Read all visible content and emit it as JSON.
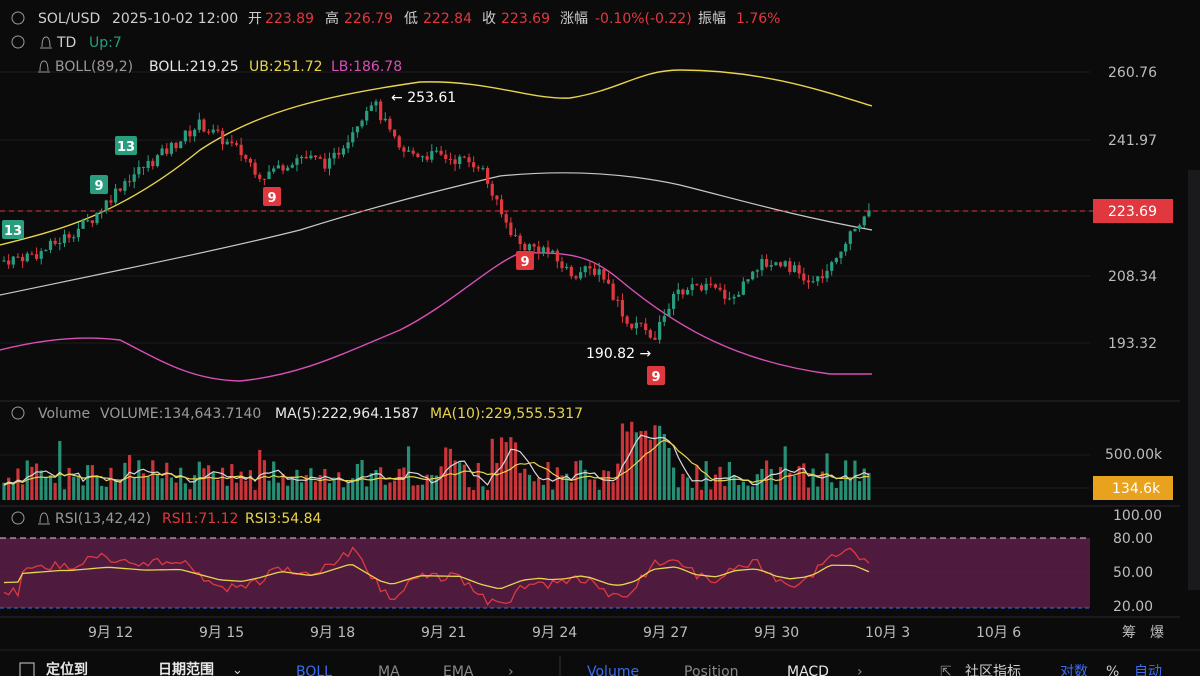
{
  "header": {
    "symbol": "SOL/USD",
    "datetime": "2025-10-02 12:00",
    "open_label": "开",
    "open": "223.89",
    "high_label": "高",
    "high": "226.79",
    "low_label": "低",
    "low": "222.84",
    "close_label": "收",
    "close": "223.69",
    "change_label": "涨幅",
    "change": "-0.10%(-0.22)",
    "amplitude_label": "振幅",
    "amplitude": "1.76%"
  },
  "indicators": {
    "td_label": "TD",
    "td_value": "Up:7",
    "boll_label": "BOLL(89,2)",
    "boll_mid": "BOLL:219.25",
    "boll_ub": "UB:251.72",
    "boll_lb": "LB:186.78"
  },
  "volume_header": {
    "label": "Volume",
    "volume": "VOLUME:134,643.7140",
    "ma5": "MA(5):222,964.1587",
    "ma10": "MA(10):229,555.5317"
  },
  "rsi_header": {
    "label": "RSI(13,42,42)",
    "rsi1": "RSI1:71.12",
    "rsi3": "RSI3:54.84"
  },
  "price_axis": [
    "260.76",
    "241.97",
    "223.69",
    "208.34",
    "193.32"
  ],
  "current_price_tag": "223.69",
  "volume_axis": [
    "500.00k"
  ],
  "current_volume_tag": "134.6k",
  "rsi_axis": [
    "100.00",
    "80.00",
    "50.00",
    "20.00"
  ],
  "x_labels": [
    "9月 12",
    "9月 15",
    "9月 18",
    "9月 21",
    "9月 24",
    "9月 27",
    "9月 30",
    "10月 3",
    "10月 6"
  ],
  "corner_labels": [
    "筹",
    "爆"
  ],
  "annotations": {
    "high_label": "253.61",
    "low_label": "190.82"
  },
  "td_marks": [
    {
      "text": "13",
      "type": "up"
    },
    {
      "text": "9",
      "type": "up"
    },
    {
      "text": "13",
      "type": "up"
    },
    {
      "text": "9",
      "type": "down"
    },
    {
      "text": "9",
      "type": "down"
    },
    {
      "text": "9",
      "type": "down"
    }
  ],
  "toolbar": {
    "locate": "定位到",
    "date_range": "日期范围",
    "tabs": [
      "BOLL",
      "MA",
      "EMA",
      "Volume",
      "Position",
      "MACD"
    ],
    "community": "社区指标",
    "log": "对数",
    "percent": "%",
    "auto": "自动"
  },
  "colors": {
    "up": "#2a9d7e",
    "down": "#e0383e",
    "boll_ub": "#e8d44d",
    "boll_mid": "#c8c8c8",
    "boll_lb": "#d84fb5",
    "ma5": "#d8d8d8",
    "ma10": "#e8d44d",
    "rsi1": "#e0383e",
    "rsi3": "#e8d44d",
    "accent_blue": "#3a6df0",
    "vol_tag": "#e8a21d"
  },
  "chart_data": {
    "type": "candlestick",
    "x_range_dates": [
      "2025-09-11",
      "2025-10-07"
    ],
    "y_axis_price_ticks": [
      260.76,
      241.97,
      223.69,
      208.34,
      193.32
    ],
    "price_key_points": [
      {
        "label": "start",
        "value": 212
      },
      {
        "label": "swing high",
        "value": 253.61
      },
      {
        "label": "drop",
        "value": 213
      },
      {
        "label": "swing low",
        "value": 190.82
      },
      {
        "label": "last close",
        "value": 223.69
      }
    ],
    "boll": {
      "period": 89,
      "k": 2,
      "mid": 219.25,
      "upper": 251.72,
      "lower": 186.78
    },
    "volume": {
      "last": 134643.714,
      "ma5": 222964.1587,
      "ma10": 229555.5317
    },
    "rsi": {
      "rsi1": 71.12,
      "rsi3": 54.84,
      "levels": [
        80,
        50,
        20
      ]
    }
  }
}
